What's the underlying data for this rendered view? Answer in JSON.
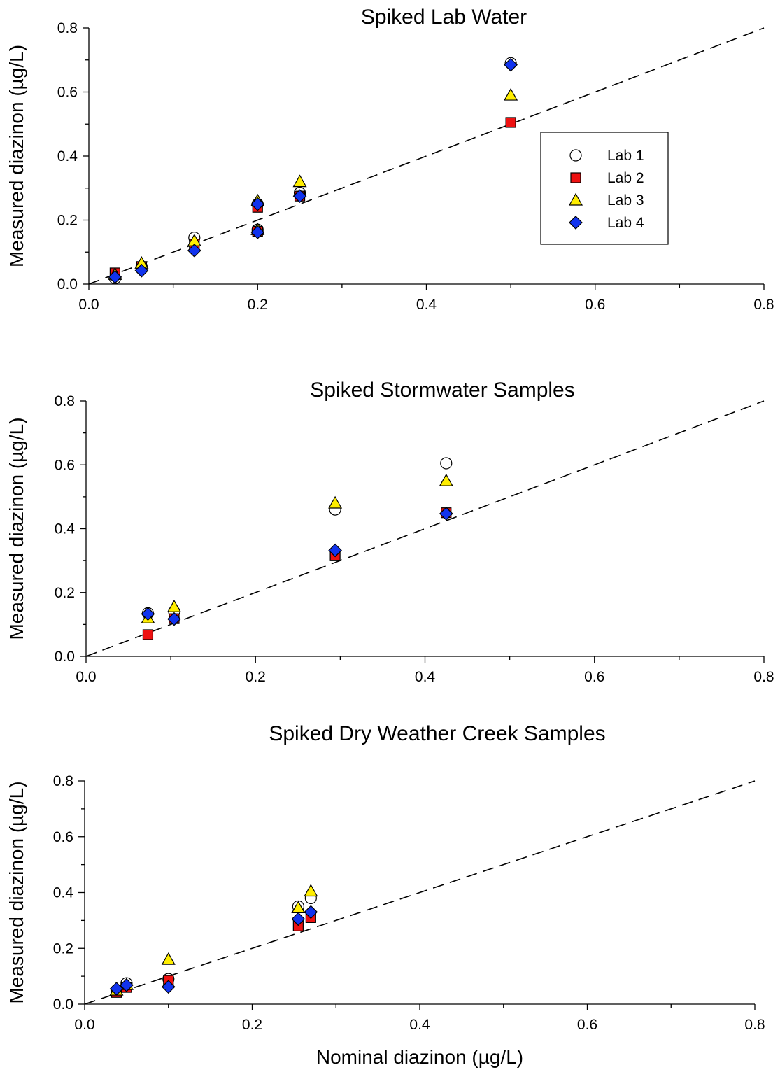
{
  "figure": {
    "xlabel": "Nominal diazinon (µg/L)"
  },
  "markers": {
    "Lab 1": {
      "shape": "circle",
      "fill": "#ffffff"
    },
    "Lab 2": {
      "shape": "square",
      "fill": "#ee1111"
    },
    "Lab 3": {
      "shape": "triangle",
      "fill": "#ffee00"
    },
    "Lab 4": {
      "shape": "diamond",
      "fill": "#1133ee"
    }
  },
  "chart_data": [
    {
      "type": "scatter",
      "title": "Spiked Lab Water",
      "xlabel": "",
      "ylabel": "Measured diazinon (µg/L)",
      "xlim": [
        0,
        0.8
      ],
      "ylim": [
        0,
        0.8
      ],
      "xticks": [
        "0.0",
        "0.2",
        "0.4",
        "0.6",
        "0.8"
      ],
      "yticks": [
        "0.0",
        "0.2",
        "0.4",
        "0.6",
        "0.8"
      ],
      "grid": false,
      "legend": {
        "position": "right",
        "entries": [
          "Lab 1",
          "Lab 2",
          "Lab 3",
          "Lab 4"
        ]
      },
      "reference_line": {
        "style": "dashed",
        "x": [
          0,
          0.8
        ],
        "y": [
          0,
          0.8
        ]
      },
      "series": [
        {
          "name": "Lab 1",
          "x": [
            0.031,
            0.0625,
            0.125,
            0.2,
            0.2,
            0.25,
            0.5
          ],
          "y": [
            0.018,
            0.055,
            0.145,
            0.17,
            0.25,
            0.285,
            0.69
          ]
        },
        {
          "name": "Lab 2",
          "x": [
            0.031,
            0.0625,
            0.125,
            0.2,
            0.2,
            0.25,
            0.5
          ],
          "y": [
            0.035,
            0.055,
            0.125,
            0.165,
            0.24,
            0.275,
            0.505
          ]
        },
        {
          "name": "Lab 3",
          "x": [
            0.031,
            0.0625,
            0.125,
            0.2,
            0.2,
            0.25,
            0.5
          ],
          "y": [
            0.03,
            0.065,
            0.135,
            0.17,
            0.26,
            0.32,
            0.59
          ]
        },
        {
          "name": "Lab 4",
          "x": [
            0.031,
            0.0625,
            0.125,
            0.2,
            0.2,
            0.25,
            0.5
          ],
          "y": [
            0.022,
            0.042,
            0.105,
            0.162,
            0.25,
            0.275,
            0.685
          ]
        }
      ]
    },
    {
      "type": "scatter",
      "title": "Spiked Stormwater Samples",
      "xlabel": "",
      "ylabel": "Measured diazinon (µg/L)",
      "xlim": [
        0,
        0.8
      ],
      "ylim": [
        0,
        0.8
      ],
      "xticks": [
        "0.0",
        "0.2",
        "0.4",
        "0.6",
        "0.8"
      ],
      "yticks": [
        "0.0",
        "0.2",
        "0.4",
        "0.6",
        "0.8"
      ],
      "grid": false,
      "reference_line": {
        "style": "dashed",
        "x": [
          0,
          0.8
        ],
        "y": [
          0,
          0.8
        ]
      },
      "series": [
        {
          "name": "Lab 1",
          "x": [
            0.073,
            0.104,
            0.294,
            0.425
          ],
          "y": [
            0.135,
            0.14,
            0.46,
            0.605
          ]
        },
        {
          "name": "Lab 2",
          "x": [
            0.073,
            0.104,
            0.294,
            0.425
          ],
          "y": [
            0.068,
            0.118,
            0.315,
            0.45
          ]
        },
        {
          "name": "Lab 3",
          "x": [
            0.073,
            0.104,
            0.294,
            0.425
          ],
          "y": [
            0.12,
            0.155,
            0.48,
            0.55
          ]
        },
        {
          "name": "Lab 4",
          "x": [
            0.073,
            0.104,
            0.294,
            0.425
          ],
          "y": [
            0.133,
            0.117,
            0.332,
            0.447
          ]
        }
      ]
    },
    {
      "type": "scatter",
      "title": "Spiked Dry Weather Creek Samples",
      "xlabel": "Nominal diazinon (µg/L)",
      "ylabel": "Measured diazinon (µg/L)",
      "xlim": [
        0,
        0.8
      ],
      "ylim": [
        0,
        0.8
      ],
      "xticks": [
        "0.0",
        "0.2",
        "0.4",
        "0.6",
        "0.8"
      ],
      "yticks": [
        "0.0",
        "0.2",
        "0.4",
        "0.6",
        "0.8"
      ],
      "grid": false,
      "reference_line": {
        "style": "dashed",
        "x": [
          0,
          0.8
        ],
        "y": [
          0,
          0.8
        ]
      },
      "series": [
        {
          "name": "Lab 1",
          "x": [
            0.038,
            0.05,
            0.1,
            0.255,
            0.27
          ],
          "y": [
            0.05,
            0.075,
            0.09,
            0.35,
            0.38
          ]
        },
        {
          "name": "Lab 2",
          "x": [
            0.038,
            0.05,
            0.1,
            0.255,
            0.27
          ],
          "y": [
            0.042,
            0.06,
            0.085,
            0.28,
            0.31
          ]
        },
        {
          "name": "Lab 3",
          "x": [
            0.038,
            0.05,
            0.1,
            0.255,
            0.27
          ],
          "y": [
            0.05,
            0.07,
            0.16,
            0.345,
            0.405
          ]
        },
        {
          "name": "Lab 4",
          "x": [
            0.038,
            0.05,
            0.1,
            0.255,
            0.27
          ],
          "y": [
            0.055,
            0.068,
            0.062,
            0.305,
            0.33
          ]
        }
      ]
    }
  ]
}
